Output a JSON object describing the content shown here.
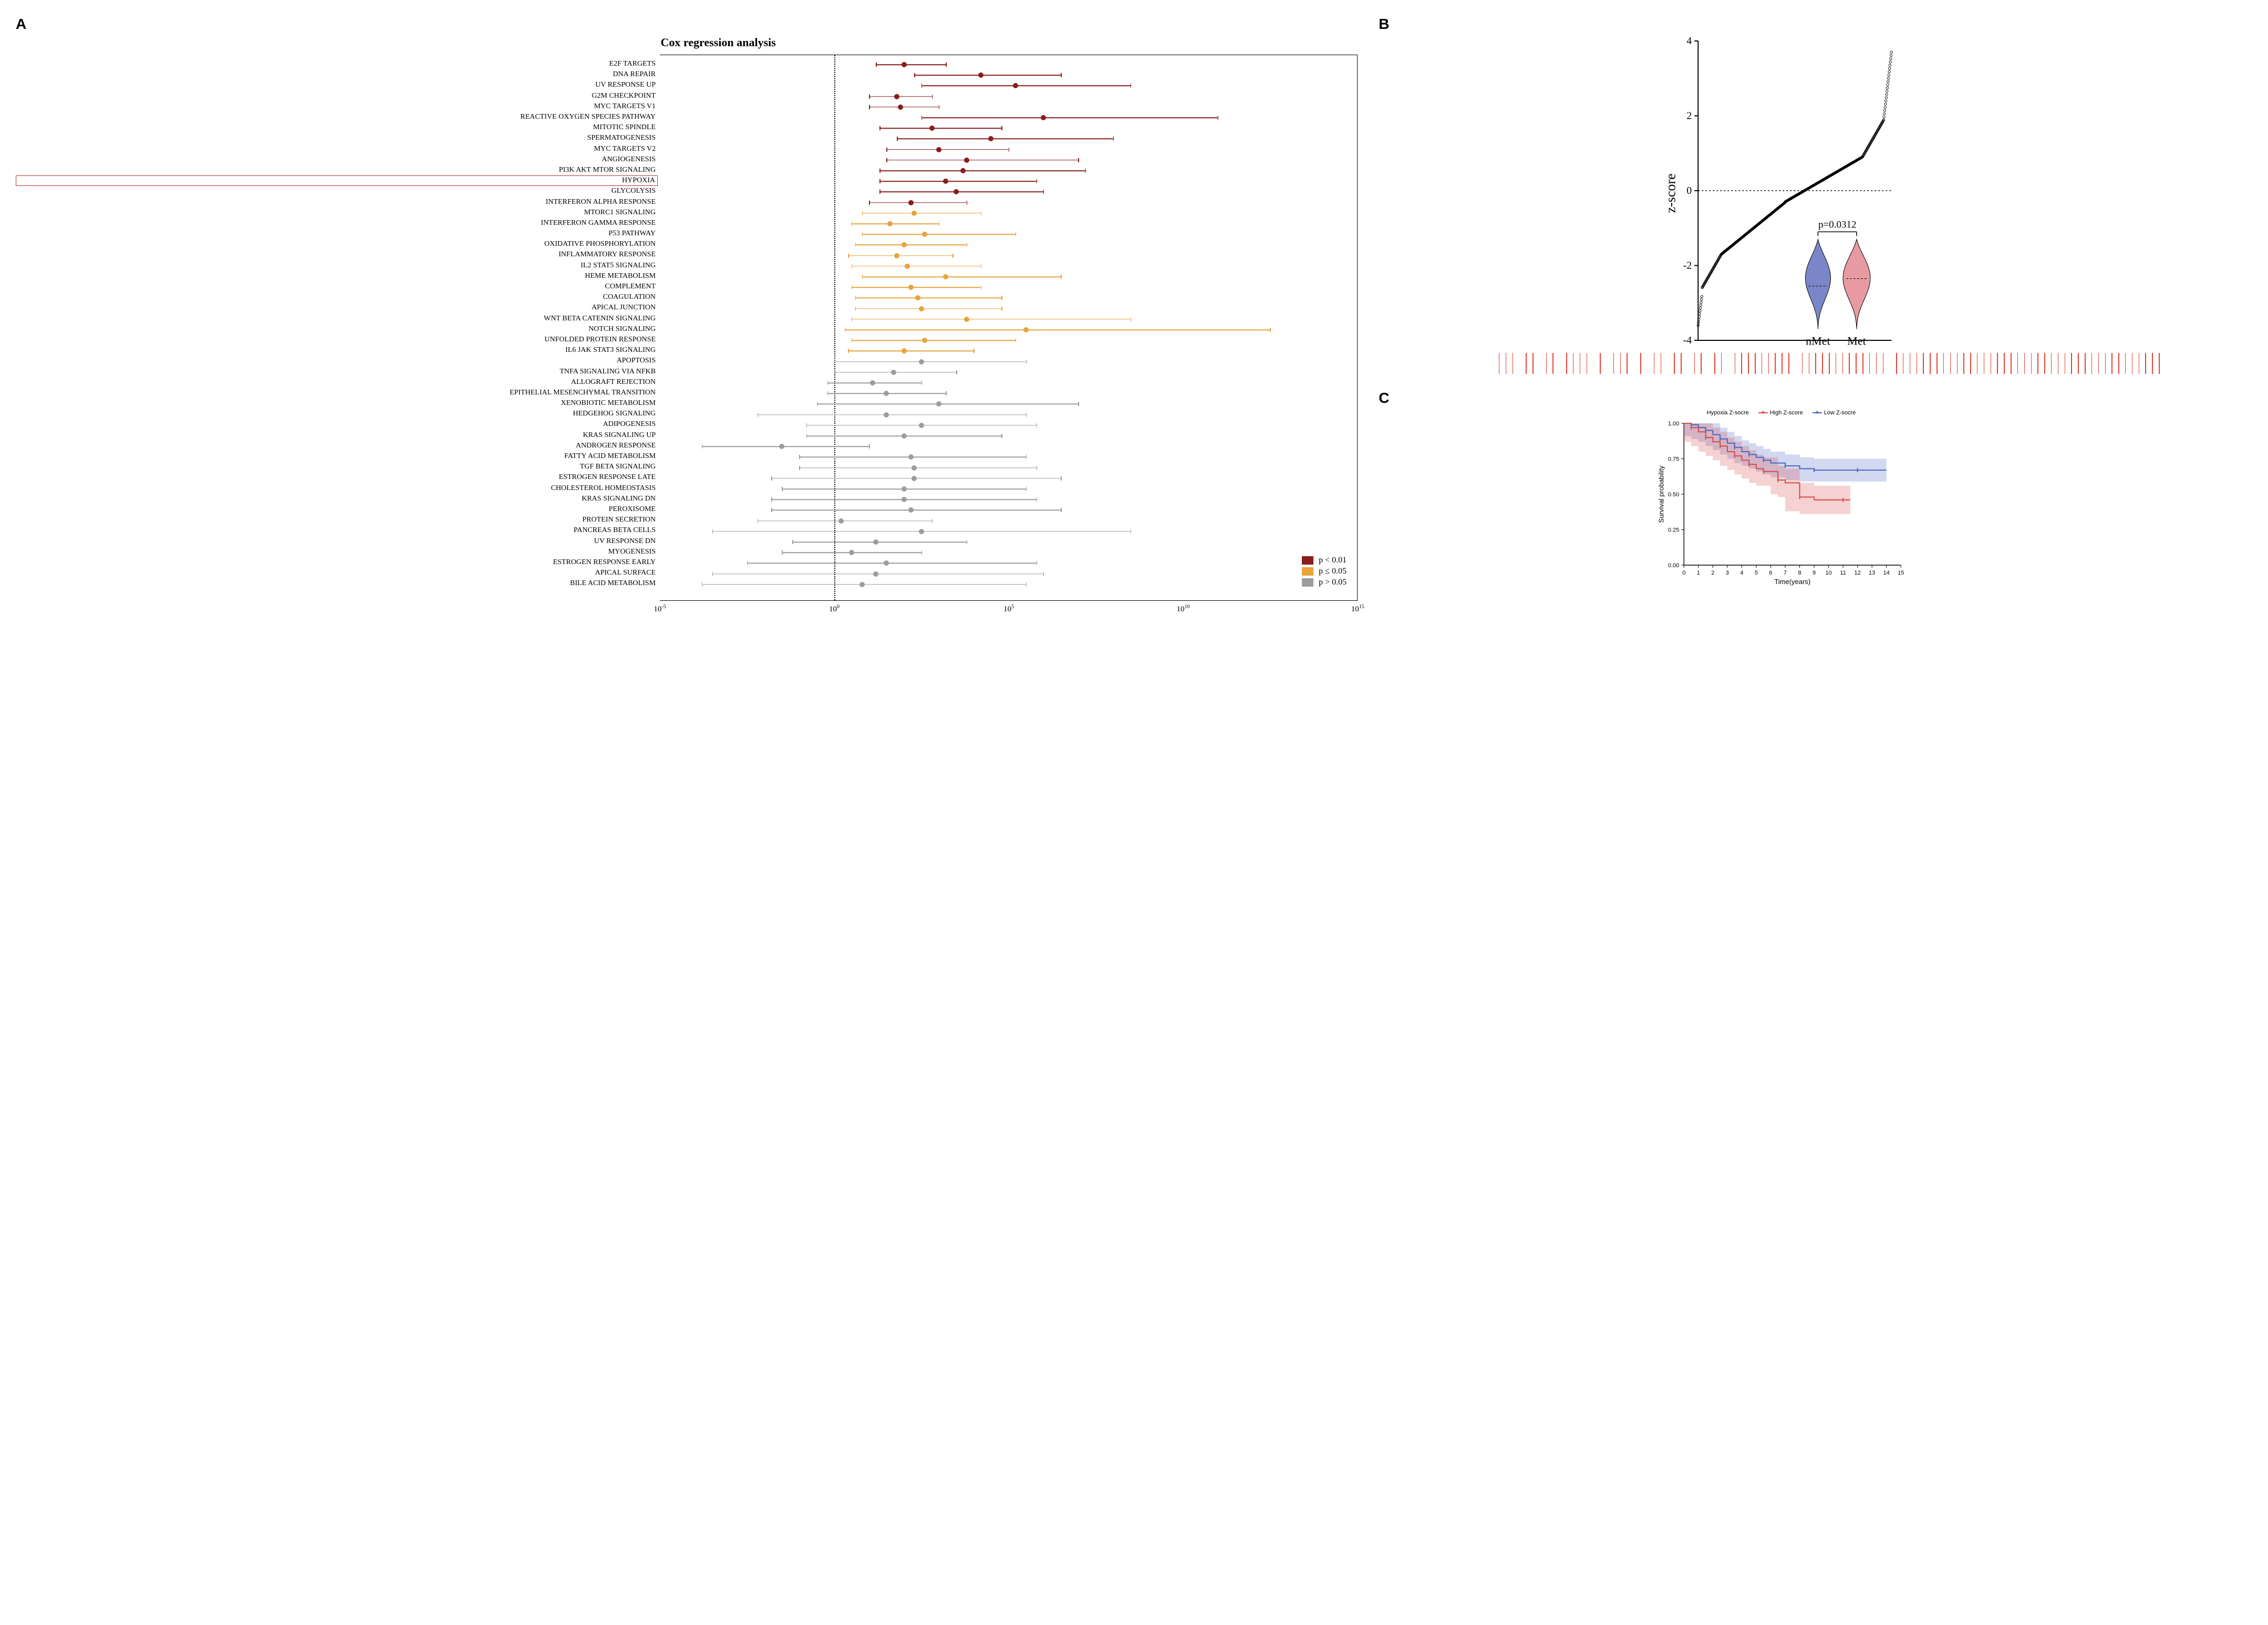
{
  "colors": {
    "sig_high": "#8a1c1c",
    "sig_mid": "#e8a33d",
    "sig_low": "#9c9c9c",
    "axis": "#000000",
    "violin_nmet_fill": "#7b86c8",
    "violin_met_fill": "#e79aa1",
    "violin_stroke": "#000000",
    "km_high": "#d94848",
    "km_low": "#4b64c4",
    "km_high_ci": "rgba(217,72,72,0.25)",
    "km_low_ci": "rgba(75,100,196,0.25)",
    "rug": "#e34234"
  },
  "panel_labels": {
    "a": "A",
    "b": "B",
    "c": "C"
  },
  "panel_a": {
    "title": "Cox regression analysis",
    "x_axis": {
      "min_exp": -5,
      "max_exp": 15,
      "ref_exp": 0,
      "ticks": [
        -5,
        0,
        5,
        10,
        15
      ]
    },
    "legend": [
      {
        "label": "p < 0.01",
        "color_key": "sig_high"
      },
      {
        "label": "p ≤ 0.05",
        "color_key": "sig_mid"
      },
      {
        "label": "p > 0.05",
        "color_key": "sig_low"
      }
    ],
    "rows": [
      {
        "label": "E2F TARGETS",
        "hr": 2.0,
        "lo": 1.2,
        "hi": 3.2,
        "sig": "sig_high"
      },
      {
        "label": "DNA REPAIR",
        "hr": 4.2,
        "lo": 2.3,
        "hi": 6.5,
        "sig": "sig_high"
      },
      {
        "label": "UV RESPONSE UP",
        "hr": 5.2,
        "lo": 2.5,
        "hi": 8.5,
        "sig": "sig_high"
      },
      {
        "label": "G2M CHECKPOINT",
        "hr": 1.8,
        "lo": 1.0,
        "hi": 2.8,
        "sig": "sig_high"
      },
      {
        "label": "MYC TARGETS V1",
        "hr": 1.9,
        "lo": 1.0,
        "hi": 3.0,
        "sig": "sig_high"
      },
      {
        "label": "REACTIVE OXYGEN SPECIES PATHWAY",
        "hr": 6.0,
        "lo": 2.5,
        "hi": 11.0,
        "sig": "sig_high"
      },
      {
        "label": "MITOTIC SPINDLE",
        "hr": 2.8,
        "lo": 1.3,
        "hi": 4.8,
        "sig": "sig_high"
      },
      {
        "label": "SPERMATOGENESIS",
        "hr": 4.5,
        "lo": 1.8,
        "hi": 8.0,
        "sig": "sig_high"
      },
      {
        "label": "MYC TARGETS V2",
        "hr": 3.0,
        "lo": 1.5,
        "hi": 5.0,
        "sig": "sig_high"
      },
      {
        "label": "ANGIOGENESIS",
        "hr": 3.8,
        "lo": 1.5,
        "hi": 7.0,
        "sig": "sig_high"
      },
      {
        "label": "PI3K AKT MTOR SIGNALING",
        "hr": 3.7,
        "lo": 1.3,
        "hi": 7.2,
        "sig": "sig_high"
      },
      {
        "label": "HYPOXIA",
        "hr": 3.2,
        "lo": 1.3,
        "hi": 5.8,
        "sig": "sig_high",
        "highlighted": true
      },
      {
        "label": "GLYCOLYSIS",
        "hr": 3.5,
        "lo": 1.3,
        "hi": 6.0,
        "sig": "sig_high"
      },
      {
        "label": "INTERFERON ALPHA RESPONSE",
        "hr": 2.2,
        "lo": 1.0,
        "hi": 3.8,
        "sig": "sig_high"
      },
      {
        "label": "MTORC1 SIGNALING",
        "hr": 2.3,
        "lo": 0.8,
        "hi": 4.2,
        "sig": "sig_mid"
      },
      {
        "label": "INTERFERON GAMMA RESPONSE",
        "hr": 1.6,
        "lo": 0.5,
        "hi": 3.0,
        "sig": "sig_mid"
      },
      {
        "label": "P53 PATHWAY",
        "hr": 2.6,
        "lo": 0.8,
        "hi": 5.2,
        "sig": "sig_mid"
      },
      {
        "label": "OXIDATIVE PHOSPHORYLATION",
        "hr": 2.0,
        "lo": 0.6,
        "hi": 3.8,
        "sig": "sig_mid"
      },
      {
        "label": "INFLAMMATORY RESPONSE",
        "hr": 1.8,
        "lo": 0.4,
        "hi": 3.4,
        "sig": "sig_mid"
      },
      {
        "label": "IL2 STAT5 SIGNALING",
        "hr": 2.1,
        "lo": 0.5,
        "hi": 4.2,
        "sig": "sig_mid"
      },
      {
        "label": "HEME METABOLISM",
        "hr": 3.2,
        "lo": 0.8,
        "hi": 6.5,
        "sig": "sig_mid"
      },
      {
        "label": "COMPLEMENT",
        "hr": 2.2,
        "lo": 0.5,
        "hi": 4.2,
        "sig": "sig_mid"
      },
      {
        "label": "COAGULATION",
        "hr": 2.4,
        "lo": 0.6,
        "hi": 4.8,
        "sig": "sig_mid"
      },
      {
        "label": "APICAL JUNCTION",
        "hr": 2.5,
        "lo": 0.6,
        "hi": 4.8,
        "sig": "sig_mid"
      },
      {
        "label": "WNT BETA CATENIN SIGNALING",
        "hr": 3.8,
        "lo": 0.5,
        "hi": 8.5,
        "sig": "sig_mid"
      },
      {
        "label": "NOTCH SIGNALING",
        "hr": 5.5,
        "lo": 0.3,
        "hi": 12.5,
        "sig": "sig_mid"
      },
      {
        "label": "UNFOLDED PROTEIN RESPONSE",
        "hr": 2.6,
        "lo": 0.5,
        "hi": 5.2,
        "sig": "sig_mid"
      },
      {
        "label": "IL6 JAK STAT3 SIGNALING",
        "hr": 2.0,
        "lo": 0.4,
        "hi": 4.0,
        "sig": "sig_mid"
      },
      {
        "label": "APOPTOSIS",
        "hr": 2.5,
        "lo": 0.0,
        "hi": 5.5,
        "sig": "sig_low"
      },
      {
        "label": "TNFA SIGNALING VIA NFKB",
        "hr": 1.7,
        "lo": 0.0,
        "hi": 3.5,
        "sig": "sig_low"
      },
      {
        "label": "ALLOGRAFT REJECTION",
        "hr": 1.1,
        "lo": -0.2,
        "hi": 2.5,
        "sig": "sig_low"
      },
      {
        "label": "EPITHELIAL MESENCHYMAL TRANSITION",
        "hr": 1.5,
        "lo": -0.2,
        "hi": 3.2,
        "sig": "sig_low"
      },
      {
        "label": "XENOBIOTIC METABOLISM",
        "hr": 3.0,
        "lo": -0.5,
        "hi": 7.0,
        "sig": "sig_low"
      },
      {
        "label": "HEDGEHOG SIGNALING",
        "hr": 1.5,
        "lo": -2.2,
        "hi": 5.5,
        "sig": "sig_low"
      },
      {
        "label": "ADIPOGENESIS",
        "hr": 2.5,
        "lo": -0.8,
        "hi": 5.8,
        "sig": "sig_low"
      },
      {
        "label": "KRAS SIGNALING UP",
        "hr": 2.0,
        "lo": -0.8,
        "hi": 4.8,
        "sig": "sig_low"
      },
      {
        "label": "ANDROGEN RESPONSE",
        "hr": -1.5,
        "lo": -3.8,
        "hi": 1.0,
        "sig": "sig_low"
      },
      {
        "label": "FATTY ACID METABOLISM",
        "hr": 2.2,
        "lo": -1.0,
        "hi": 5.5,
        "sig": "sig_low"
      },
      {
        "label": "TGF BETA SIGNALING",
        "hr": 2.3,
        "lo": -1.0,
        "hi": 5.8,
        "sig": "sig_low"
      },
      {
        "label": "ESTROGEN RESPONSE LATE",
        "hr": 2.3,
        "lo": -1.8,
        "hi": 6.5,
        "sig": "sig_low"
      },
      {
        "label": "CHOLESTEROL HOMEOSTASIS",
        "hr": 2.0,
        "lo": -1.5,
        "hi": 5.5,
        "sig": "sig_low"
      },
      {
        "label": "KRAS SIGNALING DN",
        "hr": 2.0,
        "lo": -1.8,
        "hi": 5.8,
        "sig": "sig_low"
      },
      {
        "label": "PEROXISOME",
        "hr": 2.2,
        "lo": -1.8,
        "hi": 6.5,
        "sig": "sig_low"
      },
      {
        "label": "PROTEIN SECRETION",
        "hr": 0.2,
        "lo": -2.2,
        "hi": 2.8,
        "sig": "sig_low"
      },
      {
        "label": "PANCREAS BETA CELLS",
        "hr": 2.5,
        "lo": -3.5,
        "hi": 8.5,
        "sig": "sig_low"
      },
      {
        "label": "UV RESPONSE DN",
        "hr": 1.2,
        "lo": -1.2,
        "hi": 3.8,
        "sig": "sig_low"
      },
      {
        "label": "MYOGENESIS",
        "hr": 0.5,
        "lo": -1.5,
        "hi": 2.5,
        "sig": "sig_low"
      },
      {
        "label": "ESTROGEN RESPONSE EARLY",
        "hr": 1.5,
        "lo": -2.5,
        "hi": 5.8,
        "sig": "sig_low"
      },
      {
        "label": "APICAL SURFACE",
        "hr": 1.2,
        "lo": -3.5,
        "hi": 6.0,
        "sig": "sig_low"
      },
      {
        "label": "BILE ACID METABOLISM",
        "hr": 0.8,
        "lo": -3.8,
        "hi": 5.5,
        "sig": "sig_low"
      }
    ]
  },
  "panel_b": {
    "ylabel": "z-score",
    "y_min": -4,
    "y_max": 4,
    "y_ticks": [
      -4,
      -2,
      0,
      2,
      4
    ],
    "hline": 0,
    "n_points": 520,
    "pvalue_label": "p=0.0312",
    "violin_labels": {
      "left": "nMet",
      "right": "Met"
    },
    "violin_means": {
      "nmet": -2.55,
      "met": -2.35
    },
    "rug_positions_pct": [
      1,
      2,
      3,
      5,
      6,
      8,
      9,
      11,
      13,
      16,
      18,
      19,
      22,
      24,
      25,
      27,
      30,
      31,
      33,
      34,
      36,
      37,
      38,
      39,
      41,
      42,
      43,
      44,
      46,
      47,
      48,
      49,
      51,
      52,
      53,
      55,
      56,
      57,
      58,
      60,
      61,
      63,
      64,
      65,
      66,
      67,
      69,
      70,
      71,
      72,
      74,
      75,
      76,
      77,
      79,
      80,
      81,
      82,
      83,
      85,
      86,
      87,
      88,
      89,
      90,
      91,
      92,
      93,
      94,
      95,
      96,
      97,
      98,
      99,
      12,
      14,
      20,
      28,
      40,
      50,
      54,
      62,
      68,
      73,
      78,
      84
    ]
  },
  "panel_c": {
    "legend_title": "Hypoxia Z-socre",
    "series": [
      {
        "name": "High Z-score",
        "color_key": "km_high"
      },
      {
        "name": "Low Z-socre",
        "color_key": "km_low"
      }
    ],
    "ylabel": "Survival probability",
    "xlabel": "Time(years)",
    "y_ticks": [
      0.0,
      0.25,
      0.5,
      0.75,
      1.0
    ],
    "x_ticks": [
      0,
      1,
      2,
      3,
      4,
      5,
      6,
      7,
      8,
      9,
      10,
      11,
      12,
      13,
      14,
      15
    ],
    "x_max": 15,
    "km_high": [
      {
        "t": 0,
        "s": 1.0
      },
      {
        "t": 0.5,
        "s": 0.97
      },
      {
        "t": 1,
        "s": 0.94
      },
      {
        "t": 1.5,
        "s": 0.9
      },
      {
        "t": 2,
        "s": 0.87
      },
      {
        "t": 2.5,
        "s": 0.84
      },
      {
        "t": 3,
        "s": 0.8
      },
      {
        "t": 3.5,
        "s": 0.77
      },
      {
        "t": 4,
        "s": 0.74
      },
      {
        "t": 4.5,
        "s": 0.71
      },
      {
        "t": 5,
        "s": 0.68
      },
      {
        "t": 5.5,
        "s": 0.66
      },
      {
        "t": 6,
        "s": 0.66
      },
      {
        "t": 6.5,
        "s": 0.6
      },
      {
        "t": 7,
        "s": 0.58
      },
      {
        "t": 8,
        "s": 0.48
      },
      {
        "t": 9,
        "s": 0.46
      },
      {
        "t": 11,
        "s": 0.46
      },
      {
        "t": 11.5,
        "s": 0.46
      }
    ],
    "km_low": [
      {
        "t": 0,
        "s": 1.0
      },
      {
        "t": 0.5,
        "s": 0.99
      },
      {
        "t": 1,
        "s": 0.97
      },
      {
        "t": 1.5,
        "s": 0.95
      },
      {
        "t": 2,
        "s": 0.92
      },
      {
        "t": 2.5,
        "s": 0.89
      },
      {
        "t": 3,
        "s": 0.86
      },
      {
        "t": 3.5,
        "s": 0.83
      },
      {
        "t": 4,
        "s": 0.8
      },
      {
        "t": 4.5,
        "s": 0.78
      },
      {
        "t": 5,
        "s": 0.76
      },
      {
        "t": 5.5,
        "s": 0.74
      },
      {
        "t": 6,
        "s": 0.72
      },
      {
        "t": 7,
        "s": 0.7
      },
      {
        "t": 8,
        "s": 0.68
      },
      {
        "t": 9,
        "s": 0.67
      },
      {
        "t": 10,
        "s": 0.67
      },
      {
        "t": 12,
        "s": 0.67
      },
      {
        "t": 14,
        "s": 0.67
      }
    ]
  }
}
